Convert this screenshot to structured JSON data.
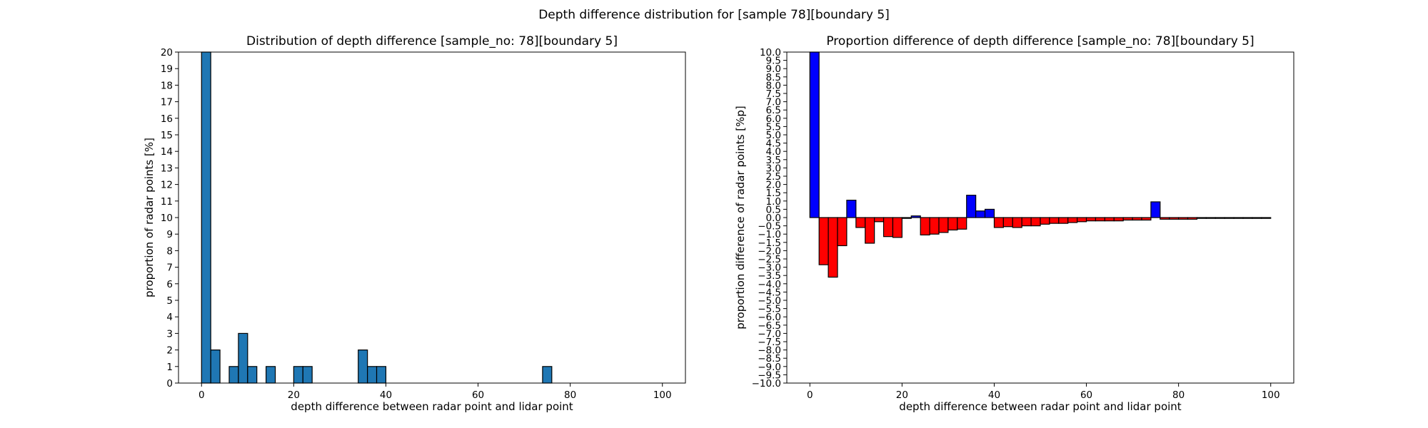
{
  "figure": {
    "suptitle": "Depth difference distribution for [sample 78][boundary 5]"
  },
  "chart_data": [
    {
      "type": "bar",
      "title": "Distribution of depth difference [sample_no: 78][boundary 5]",
      "xlabel": "depth difference between radar point and lidar point",
      "ylabel": "proportion of radar points [%]",
      "xlim": [
        -5,
        105
      ],
      "ylim": [
        0,
        20
      ],
      "xticks": [
        0,
        20,
        40,
        60,
        80,
        100
      ],
      "yticks": [
        0,
        1,
        2,
        3,
        4,
        5,
        6,
        7,
        8,
        9,
        10,
        11,
        12,
        13,
        14,
        15,
        16,
        17,
        18,
        19,
        20
      ],
      "bin_width": 2,
      "bin_starts": [
        0,
        2,
        4,
        6,
        8,
        10,
        12,
        14,
        16,
        18,
        20,
        22,
        24,
        26,
        28,
        30,
        32,
        34,
        36,
        38,
        40,
        42,
        44,
        46,
        48,
        50,
        52,
        54,
        56,
        58,
        60,
        62,
        64,
        66,
        68,
        70,
        72,
        74,
        76,
        78,
        80,
        82,
        84,
        86,
        88,
        90,
        92,
        94,
        96,
        98
      ],
      "values": [
        20,
        2,
        0,
        1,
        3,
        1,
        0,
        1,
        0,
        0,
        1,
        1,
        0,
        0,
        0,
        0,
        0,
        2,
        1,
        1,
        0,
        0,
        0,
        0,
        0,
        0,
        0,
        0,
        0,
        0,
        0,
        0,
        0,
        0,
        0,
        0,
        0,
        1,
        0,
        0,
        0,
        0,
        0,
        0,
        0,
        0,
        0,
        0,
        0,
        0
      ],
      "color": "#1f77b4",
      "edgecolor": "#000000",
      "grid": false
    },
    {
      "type": "bar",
      "title": "Proportion difference of depth difference [sample_no: 78][boundary 5]",
      "xlabel": "depth difference between radar point and lidar point",
      "ylabel": "proportion difference of radar points [%p]",
      "xlim": [
        -5,
        105
      ],
      "ylim": [
        -10,
        10
      ],
      "xticks": [
        0,
        20,
        40,
        60,
        80,
        100
      ],
      "yticks": [
        -10.0,
        -9.5,
        -9.0,
        -8.5,
        -8.0,
        -7.5,
        -7.0,
        -6.5,
        -6.0,
        -5.5,
        -5.0,
        -4.5,
        -4.0,
        -3.5,
        -3.0,
        -2.5,
        -2.0,
        -1.5,
        -1.0,
        -0.5,
        0.0,
        0.5,
        1.0,
        1.5,
        2.0,
        2.5,
        3.0,
        3.5,
        4.0,
        4.5,
        5.0,
        5.5,
        6.0,
        6.5,
        7.0,
        7.5,
        8.0,
        8.5,
        9.0,
        9.5,
        10.0
      ],
      "bin_width": 2,
      "bin_starts": [
        0,
        2,
        4,
        6,
        8,
        10,
        12,
        14,
        16,
        18,
        20,
        22,
        24,
        26,
        28,
        30,
        32,
        34,
        36,
        38,
        40,
        42,
        44,
        46,
        48,
        50,
        52,
        54,
        56,
        58,
        60,
        62,
        64,
        66,
        68,
        70,
        72,
        74,
        76,
        78,
        80,
        82,
        84,
        86,
        88,
        90,
        92,
        94,
        96,
        98
      ],
      "values": [
        10.0,
        -2.85,
        -3.6,
        -1.7,
        1.05,
        -0.6,
        -1.55,
        -0.25,
        -1.15,
        -1.2,
        -0.05,
        0.1,
        -1.05,
        -1.0,
        -0.9,
        -0.75,
        -0.7,
        1.35,
        0.4,
        0.5,
        -0.6,
        -0.55,
        -0.6,
        -0.5,
        -0.5,
        -0.4,
        -0.35,
        -0.35,
        -0.3,
        -0.25,
        -0.2,
        -0.2,
        -0.2,
        -0.2,
        -0.15,
        -0.15,
        -0.15,
        0.95,
        -0.1,
        -0.1,
        -0.1,
        -0.1,
        -0.05,
        -0.05,
        -0.05,
        -0.05,
        -0.05,
        -0.05,
        -0.05,
        -0.05
      ],
      "positive_color": "#0000ff",
      "negative_color": "#ff0000",
      "edgecolor": "#000000",
      "grid": false
    }
  ]
}
